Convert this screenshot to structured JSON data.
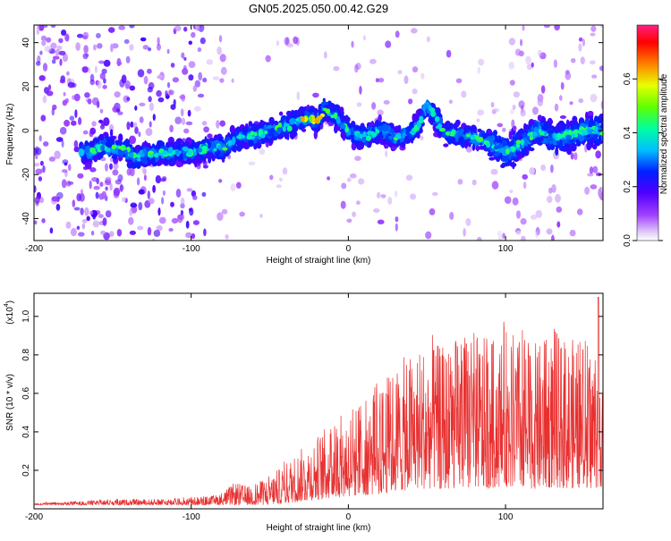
{
  "title": "GN05.2025.050.00.42.G29",
  "chart_data": [
    {
      "type": "heatmap",
      "xlabel": "Height of straight line (km)",
      "ylabel": "Frequency (Hz)",
      "xlim": [
        -200,
        162
      ],
      "ylim": [
        -50,
        48
      ],
      "xticks": [
        -200,
        -100,
        0,
        100
      ],
      "yticks": [
        -40,
        -20,
        0,
        20,
        40
      ],
      "colorbar": {
        "label": "Normalized spectral amplitude",
        "range": [
          0.0,
          0.8
        ],
        "ticks": [
          0.0,
          0.2,
          0.4,
          0.6
        ],
        "ticklabels": [
          "0.0",
          "0.2",
          "0.4",
          "0.6"
        ]
      },
      "ridge": {
        "x": [
          -165,
          -155,
          -145,
          -135,
          -120,
          -100,
          -90,
          -80,
          -70,
          -60,
          -50,
          -40,
          -30,
          -25,
          -20,
          -15,
          -10,
          -5,
          0,
          10,
          20,
          30,
          40,
          45,
          50,
          55,
          60,
          70,
          80,
          90,
          100,
          110,
          120,
          130,
          140,
          150,
          160
        ],
        "y": [
          -10,
          -7,
          -8,
          -12,
          -10,
          -10,
          -8,
          -8,
          -3,
          -2,
          0,
          2,
          5,
          6,
          4,
          10,
          8,
          4,
          0,
          -3,
          0,
          -3,
          -1,
          3,
          12,
          6,
          0,
          -2,
          -3,
          -5,
          -10,
          -6,
          0,
          -3,
          -2,
          0,
          0
        ]
      }
    },
    {
      "type": "line",
      "xlabel": "Height of straight line (km)",
      "ylabel": "SNR (10 * v/v)",
      "yscale_label": "(x10",
      "yscale_exp": "4",
      "xlim": [
        -200,
        162
      ],
      "ylim": [
        0,
        1.12
      ],
      "xticks": [
        -200,
        -100,
        0,
        100
      ],
      "yticks": [
        0.2,
        0.4,
        0.6,
        0.8,
        1.0
      ],
      "ytick_labels": [
        "0.2",
        "0.4",
        "0.6",
        "0.8",
        "1.0"
      ],
      "color": "#e83030",
      "envelope": {
        "x": [
          -200,
          -170,
          -150,
          -120,
          -100,
          -85,
          -78,
          -72,
          -65,
          -55,
          -45,
          -35,
          -25,
          -15,
          -8,
          0,
          10,
          20,
          30,
          40,
          50,
          60,
          70,
          80,
          90,
          100,
          110,
          120,
          130,
          140,
          150,
          155,
          160
        ],
        "y": [
          0.03,
          0.04,
          0.05,
          0.05,
          0.06,
          0.07,
          0.1,
          0.14,
          0.12,
          0.15,
          0.2,
          0.28,
          0.35,
          0.42,
          0.48,
          0.52,
          0.58,
          0.64,
          0.75,
          0.82,
          0.88,
          0.85,
          0.9,
          0.92,
          0.87,
          0.95,
          0.9,
          0.86,
          0.92,
          0.88,
          0.9,
          0.85,
          0.95
        ],
        "spike_x": 159,
        "spike_y": 1.1
      }
    }
  ]
}
